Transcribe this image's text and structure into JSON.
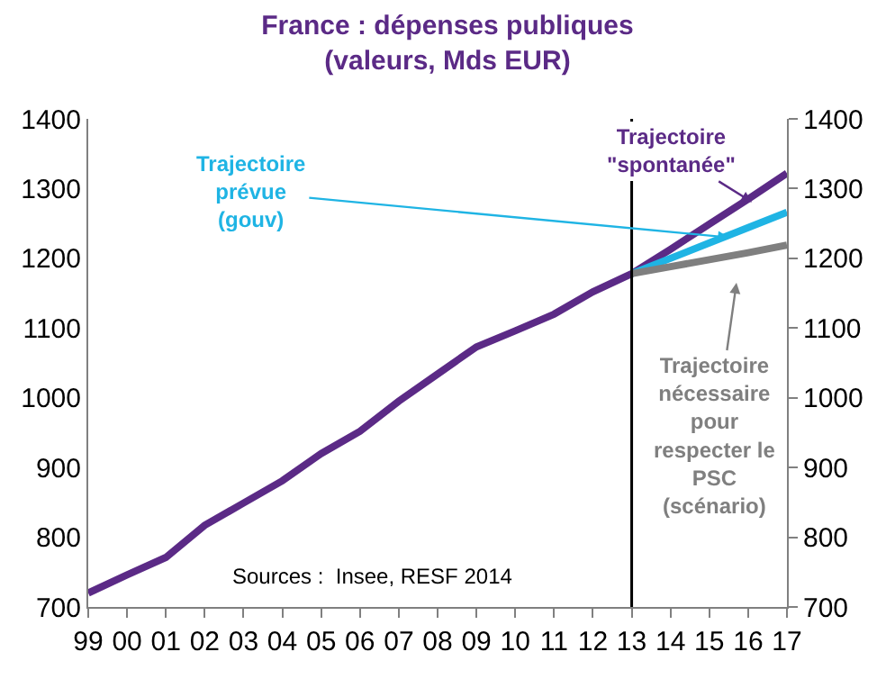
{
  "chart_data": {
    "type": "line",
    "title": "France : dépenses publiques\n(valeurs, Mds EUR)",
    "x": [
      1999,
      2000,
      2001,
      2002,
      2003,
      2004,
      2005,
      2006,
      2007,
      2008,
      2009,
      2010,
      2011,
      2012,
      2013,
      2014,
      2015,
      2016,
      2017
    ],
    "series": [
      {
        "name": "Trajectoire\n\"spontanée\"",
        "color": "#5b2a86",
        "values": [
          720,
          746,
          771,
          817,
          849,
          881,
          920,
          952,
          995,
          1034,
          1073,
          1096,
          1120,
          1152,
          1178,
          1213,
          1249,
          1285,
          1322
        ]
      },
      {
        "name": "Trajectoire\nprévue\n(gouv)",
        "color": "#1fb4e4",
        "x": [
          2013,
          2014,
          2015,
          2016,
          2017
        ],
        "values": [
          1178,
          1200,
          1222,
          1244,
          1266
        ]
      },
      {
        "name": "Trajectoire\nnécessaire\npour\nrespecter le\nPSC\n(scénario)",
        "color": "#7f7f7f",
        "x": [
          2013,
          2014,
          2015,
          2016,
          2017
        ],
        "values": [
          1178,
          1188,
          1198,
          1208,
          1219
        ]
      }
    ],
    "xlim": [
      1999,
      2017
    ],
    "xticks": [
      {
        "value": 1999,
        "label": "99"
      },
      {
        "value": 2000,
        "label": "00"
      },
      {
        "value": 2001,
        "label": "01"
      },
      {
        "value": 2002,
        "label": "02"
      },
      {
        "value": 2003,
        "label": "03"
      },
      {
        "value": 2004,
        "label": "04"
      },
      {
        "value": 2005,
        "label": "05"
      },
      {
        "value": 2006,
        "label": "06"
      },
      {
        "value": 2007,
        "label": "07"
      },
      {
        "value": 2008,
        "label": "08"
      },
      {
        "value": 2009,
        "label": "09"
      },
      {
        "value": 2010,
        "label": "10"
      },
      {
        "value": 2011,
        "label": "11"
      },
      {
        "value": 2012,
        "label": "12"
      },
      {
        "value": 2013,
        "label": "13"
      },
      {
        "value": 2014,
        "label": "14"
      },
      {
        "value": 2015,
        "label": "15"
      },
      {
        "value": 2016,
        "label": "16"
      },
      {
        "value": 2017,
        "label": "17"
      }
    ],
    "ylim": [
      700,
      1400
    ],
    "yticks": [
      700,
      800,
      900,
      1000,
      1100,
      1200,
      1300,
      1400
    ],
    "y2lim": [
      700,
      1400
    ],
    "y2ticks": [
      700,
      800,
      900,
      1000,
      1100,
      1200,
      1300,
      1400
    ],
    "ref_lines": [
      {
        "axis": "x",
        "value": 2013,
        "color": "#000000"
      }
    ],
    "annotations": [
      "Sources :  Insee, RESF 2014"
    ],
    "legend": false,
    "marker": "none",
    "line_style": "solid"
  }
}
